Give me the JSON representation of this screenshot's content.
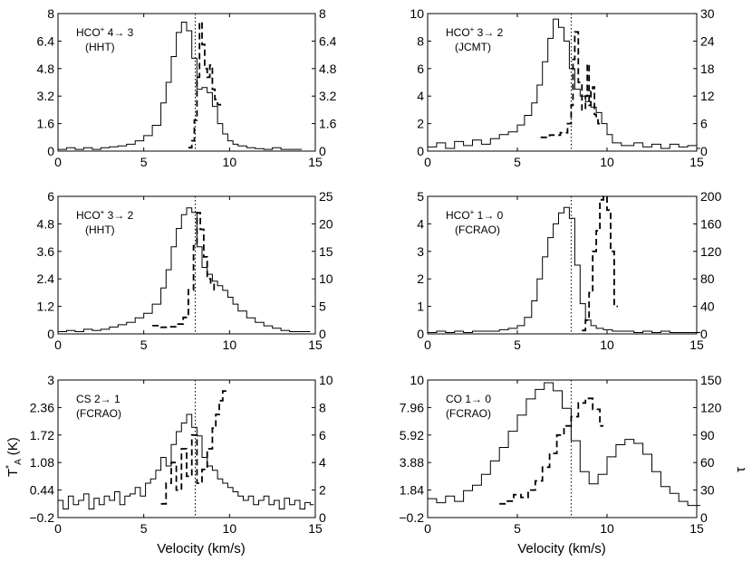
{
  "figure": {
    "xlabel": "Velocity (km/s)",
    "left_ylabel": "T",
    "left_ylabel_sup": "*",
    "left_ylabel_sub": "A",
    "left_ylabel_unit": "(K)",
    "right_ylabel": "τ"
  },
  "chart_data": [
    {
      "type": "line",
      "id": "hco43",
      "label_line1": "HCO",
      "label_sup": "+",
      "label_trans": " 4→ 3",
      "label_line2": "(HHT)",
      "xlim": [
        0,
        15
      ],
      "ylim": [
        0,
        8
      ],
      "y2lim": [
        0,
        8
      ],
      "xticks": [
        "0",
        "5",
        "10",
        "15"
      ],
      "yticks": [
        "0",
        "1.6",
        "3.2",
        "4.8",
        "6.4",
        "8"
      ],
      "y2ticks": [
        "0",
        "1.6",
        "3.2",
        "4.8",
        "6.4",
        "8"
      ],
      "vline": 8.0,
      "series": [
        {
          "name": "spectrum",
          "style": "solid",
          "axis": "left",
          "x": [
            0.0,
            0.5,
            1.0,
            1.5,
            2.0,
            2.5,
            3.0,
            3.5,
            4.0,
            4.5,
            5.0,
            5.5,
            6.0,
            6.3,
            6.6,
            6.9,
            7.2,
            7.5,
            7.8,
            8.1,
            8.4,
            8.7,
            9.0,
            9.3,
            9.6,
            9.9,
            10.2,
            10.5,
            11.0,
            11.5,
            12.0,
            12.5,
            13.0,
            13.5,
            14.0
          ],
          "y": [
            0.1,
            0.2,
            0.1,
            0.2,
            0.1,
            0.2,
            0.25,
            0.3,
            0.4,
            0.6,
            0.9,
            1.5,
            2.8,
            4.0,
            5.5,
            6.9,
            7.5,
            7.0,
            5.4,
            3.6,
            3.7,
            3.4,
            2.6,
            1.6,
            1.0,
            0.6,
            0.4,
            0.3,
            0.2,
            0.15,
            0.1,
            0.2,
            0.1,
            0.1,
            0.1
          ]
        },
        {
          "name": "optical depth",
          "style": "dashed",
          "axis": "right",
          "x": [
            7.6,
            7.8,
            7.95,
            8.1,
            8.25,
            8.4,
            8.55,
            8.7,
            8.85,
            9.0,
            9.15,
            9.3
          ],
          "y": [
            0.2,
            0.6,
            1.8,
            4.3,
            7.5,
            6.2,
            4.8,
            4.3,
            5.0,
            3.6,
            3.0,
            2.7
          ]
        }
      ]
    },
    {
      "type": "line",
      "id": "hco32jcmt",
      "label_line1": "HCO",
      "label_sup": "+",
      "label_trans": " 3→ 2",
      "label_line2": "(JCMT)",
      "xlim": [
        0,
        15
      ],
      "ylim": [
        0,
        10
      ],
      "y2lim": [
        0,
        30
      ],
      "xticks": [
        "0",
        "5",
        "10",
        "15"
      ],
      "yticks": [
        "0",
        "2",
        "4",
        "6",
        "8",
        "10"
      ],
      "y2ticks": [
        "0",
        "6",
        "12",
        "18",
        "24",
        "30"
      ],
      "vline": 8.0,
      "series": [
        {
          "name": "spectrum",
          "style": "solid",
          "axis": "left",
          "x": [
            0.0,
            0.5,
            1.0,
            1.5,
            2.0,
            2.5,
            3.0,
            3.5,
            4.0,
            4.5,
            5.0,
            5.4,
            5.8,
            6.1,
            6.4,
            6.7,
            7.0,
            7.3,
            7.6,
            7.9,
            8.2,
            8.5,
            8.8,
            9.1,
            9.4,
            9.7,
            10.0,
            10.3,
            10.8,
            11.5,
            12.0,
            12.5,
            13.0,
            13.5,
            14.0,
            14.5,
            15.0
          ],
          "y": [
            0.3,
            0.6,
            0.2,
            0.7,
            0.4,
            0.8,
            0.5,
            0.9,
            1.2,
            1.4,
            1.9,
            2.6,
            3.5,
            4.8,
            6.5,
            8.2,
            9.6,
            9.0,
            8.0,
            6.0,
            4.5,
            4.0,
            3.6,
            3.2,
            2.8,
            2.0,
            1.2,
            0.6,
            0.4,
            0.6,
            0.3,
            0.5,
            0.2,
            0.5,
            0.3,
            0.4,
            0.2
          ]
        },
        {
          "name": "optical depth",
          "style": "dashed",
          "axis": "right",
          "x": [
            6.3,
            6.8,
            7.4,
            7.8,
            8.0,
            8.1,
            8.2,
            8.4,
            8.6,
            8.8,
            8.9,
            9.0,
            9.1,
            9.2,
            9.3,
            9.4,
            9.5
          ],
          "y": [
            3.0,
            3.5,
            4.0,
            6.0,
            10.0,
            20.0,
            26.0,
            15.0,
            9.0,
            12.0,
            19.0,
            10.0,
            13.0,
            14.0,
            8.0,
            7.0,
            6.0
          ]
        }
      ]
    },
    {
      "type": "line",
      "id": "hco32hht",
      "label_line1": "HCO",
      "label_sup": "+",
      "label_trans": " 3→ 2",
      "label_line2": "(HHT)",
      "xlim": [
        0,
        15
      ],
      "ylim": [
        0,
        6
      ],
      "y2lim": [
        0,
        25
      ],
      "xticks": [
        "0",
        "5",
        "10",
        "15"
      ],
      "yticks": [
        "0",
        "1.2",
        "2.4",
        "3.6",
        "4.8",
        "6"
      ],
      "y2ticks": [
        "0",
        "5",
        "10",
        "15",
        "20",
        "25"
      ],
      "vline": 8.0,
      "series": [
        {
          "name": "spectrum",
          "style": "solid",
          "axis": "left",
          "x": [
            0.0,
            0.5,
            1.0,
            1.5,
            2.0,
            2.5,
            3.0,
            3.5,
            4.0,
            4.5,
            5.0,
            5.5,
            6.0,
            6.3,
            6.6,
            6.9,
            7.2,
            7.5,
            7.8,
            8.1,
            8.4,
            8.7,
            9.0,
            9.3,
            9.6,
            9.9,
            10.2,
            10.5,
            11.0,
            11.5,
            12.0,
            12.5,
            13.0,
            13.5,
            14.0,
            14.5
          ],
          "y": [
            0.1,
            0.15,
            0.1,
            0.2,
            0.15,
            0.2,
            0.3,
            0.4,
            0.5,
            0.7,
            0.9,
            1.3,
            2.0,
            2.8,
            3.8,
            4.6,
            5.2,
            5.5,
            5.3,
            3.8,
            2.9,
            2.6,
            2.3,
            2.1,
            1.9,
            1.6,
            1.3,
            1.0,
            0.7,
            0.5,
            0.35,
            0.25,
            0.15,
            0.1,
            0.1,
            0.1
          ]
        },
        {
          "name": "optical depth",
          "style": "dashed",
          "axis": "right",
          "x": [
            5.5,
            6.0,
            6.5,
            7.0,
            7.3,
            7.6,
            7.9,
            8.1,
            8.3,
            8.5,
            8.7,
            8.9,
            9.1
          ],
          "y": [
            1.5,
            1.2,
            1.3,
            1.8,
            3.0,
            8.0,
            16.0,
            22.0,
            19.0,
            14.0,
            10.0,
            9.0,
            8.0
          ]
        }
      ]
    },
    {
      "type": "line",
      "id": "hco10",
      "label_line1": "HCO",
      "label_sup": "+",
      "label_trans": " 1→ 0",
      "label_line2": "(FCRAO)",
      "xlim": [
        0,
        15
      ],
      "ylim": [
        0,
        5
      ],
      "y2lim": [
        0,
        200
      ],
      "xticks": [
        "0",
        "5",
        "10",
        "15"
      ],
      "yticks": [
        "0",
        "1",
        "2",
        "3",
        "4",
        "5"
      ],
      "y2ticks": [
        "0",
        "40",
        "80",
        "120",
        "160",
        "200"
      ],
      "vline": 8.0,
      "series": [
        {
          "name": "spectrum",
          "style": "solid",
          "axis": "left",
          "x": [
            0.0,
            0.5,
            1.0,
            1.5,
            2.0,
            2.5,
            3.0,
            3.5,
            4.0,
            4.5,
            5.0,
            5.4,
            5.8,
            6.1,
            6.4,
            6.7,
            7.0,
            7.3,
            7.6,
            7.9,
            8.2,
            8.5,
            8.8,
            9.1,
            9.4,
            9.8,
            10.3,
            11.0,
            11.5,
            12.0,
            12.5,
            13.0,
            13.5,
            14.0,
            14.5,
            15.0
          ],
          "y": [
            0.05,
            0.1,
            0.05,
            0.1,
            0.05,
            0.1,
            0.1,
            0.1,
            0.15,
            0.2,
            0.3,
            0.6,
            1.2,
            2.0,
            2.8,
            3.5,
            4.0,
            4.4,
            4.6,
            4.2,
            2.5,
            1.1,
            0.5,
            0.3,
            0.2,
            0.15,
            0.1,
            0.1,
            0.05,
            0.1,
            0.05,
            0.1,
            0.05,
            0.05,
            0.05,
            0.05
          ]
        },
        {
          "name": "optical depth",
          "style": "dashed",
          "axis": "right",
          "x": [
            8.6,
            8.8,
            9.0,
            9.2,
            9.4,
            9.6,
            9.8,
            10.0,
            10.2,
            10.4
          ],
          "y": [
            5.0,
            20.0,
            60.0,
            120.0,
            150.0,
            195.0,
            200.0,
            180.0,
            120.0,
            40.0
          ]
        }
      ]
    },
    {
      "type": "line",
      "id": "cs21",
      "label_line1": "CS 2→ 1",
      "label_sup": "",
      "label_trans": "",
      "label_line2": "(FCRAO)",
      "xlim": [
        0,
        15
      ],
      "ylim": [
        -0.2,
        3
      ],
      "y2lim": [
        0,
        10
      ],
      "xticks": [
        "0",
        "5",
        "10",
        "15"
      ],
      "yticks": [
        "−0.2",
        "0.44",
        "1.08",
        "1.72",
        "2.36",
        "3"
      ],
      "y2ticks": [
        "0",
        "2",
        "4",
        "6",
        "8",
        "10"
      ],
      "vline": 8.0,
      "series": [
        {
          "name": "spectrum",
          "style": "solid",
          "axis": "left",
          "x": [
            0.0,
            0.3,
            0.6,
            0.9,
            1.2,
            1.5,
            1.8,
            2.1,
            2.4,
            2.7,
            3.0,
            3.3,
            3.6,
            3.9,
            4.2,
            4.5,
            4.8,
            5.1,
            5.4,
            5.7,
            6.0,
            6.3,
            6.6,
            6.9,
            7.2,
            7.5,
            7.8,
            8.1,
            8.4,
            8.7,
            9.0,
            9.3,
            9.6,
            9.9,
            10.2,
            10.5,
            10.8,
            11.1,
            11.4,
            11.7,
            12.0,
            12.3,
            12.6,
            12.9,
            13.2,
            13.5,
            13.8,
            14.1,
            14.4,
            14.7
          ],
          "y": [
            0.2,
            0.0,
            0.3,
            0.1,
            0.2,
            0.35,
            0.0,
            0.25,
            0.1,
            0.3,
            0.2,
            0.4,
            0.1,
            0.3,
            0.35,
            0.5,
            0.3,
            0.6,
            0.7,
            0.9,
            1.2,
            1.0,
            1.5,
            1.8,
            2.0,
            2.2,
            1.9,
            1.7,
            1.2,
            1.0,
            0.9,
            0.7,
            0.6,
            0.5,
            0.4,
            0.3,
            0.2,
            0.3,
            0.1,
            0.2,
            0.3,
            0.1,
            0.2,
            0.0,
            0.25,
            0.1,
            0.2,
            0.0,
            0.15,
            0.1
          ]
        },
        {
          "name": "optical depth",
          "style": "dashed",
          "axis": "right",
          "x": [
            6.0,
            6.3,
            6.6,
            6.9,
            7.2,
            7.5,
            7.8,
            8.1,
            8.4,
            8.7,
            9.0,
            9.2,
            9.4,
            9.6
          ],
          "y": [
            1.0,
            2.5,
            4.0,
            2.0,
            5.0,
            3.0,
            6.0,
            2.5,
            3.5,
            5.0,
            6.5,
            7.5,
            8.5,
            9.2
          ]
        }
      ]
    },
    {
      "type": "line",
      "id": "co10",
      "label_line1": "CO 1→ 0",
      "label_sup": "",
      "label_trans": "",
      "label_line2": "(FCRAO)",
      "xlim": [
        0,
        15
      ],
      "ylim": [
        -0.2,
        10
      ],
      "y2lim": [
        0,
        150
      ],
      "xticks": [
        "0",
        "5",
        "10",
        "15"
      ],
      "yticks": [
        "−0.2",
        "1.84",
        "3.88",
        "5.92",
        "7.96",
        "10"
      ],
      "y2ticks": [
        "0",
        "30",
        "60",
        "90",
        "120",
        "150"
      ],
      "vline": 8.0,
      "series": [
        {
          "name": "spectrum",
          "style": "solid",
          "axis": "left",
          "x": [
            0.0,
            0.5,
            1.0,
            1.5,
            2.0,
            2.5,
            3.0,
            3.5,
            4.0,
            4.5,
            5.0,
            5.5,
            6.0,
            6.5,
            7.0,
            7.5,
            8.0,
            8.5,
            9.0,
            9.5,
            10.0,
            10.5,
            11.0,
            11.5,
            12.0,
            12.5,
            13.0,
            13.5,
            14.0,
            14.5,
            15.0
          ],
          "y": [
            1.2,
            0.9,
            1.4,
            1.0,
            1.8,
            2.2,
            3.0,
            4.0,
            5.0,
            6.2,
            7.4,
            8.6,
            9.3,
            9.8,
            9.2,
            7.9,
            5.5,
            3.2,
            2.3,
            3.0,
            4.3,
            5.2,
            5.6,
            5.3,
            4.5,
            3.2,
            2.1,
            1.6,
            1.0,
            0.7,
            0.7
          ]
        },
        {
          "name": "optical depth",
          "style": "dashed",
          "axis": "right",
          "x": [
            4.0,
            4.4,
            4.8,
            5.2,
            5.6,
            6.0,
            6.4,
            6.8,
            7.2,
            7.6,
            8.0,
            8.4,
            8.8,
            9.2,
            9.6
          ],
          "y": [
            15.0,
            18.0,
            25.0,
            22.0,
            30.0,
            40.0,
            55.0,
            70.0,
            90.0,
            100.0,
            110.0,
            125.0,
            130.0,
            118.0,
            100.0
          ]
        }
      ]
    }
  ]
}
